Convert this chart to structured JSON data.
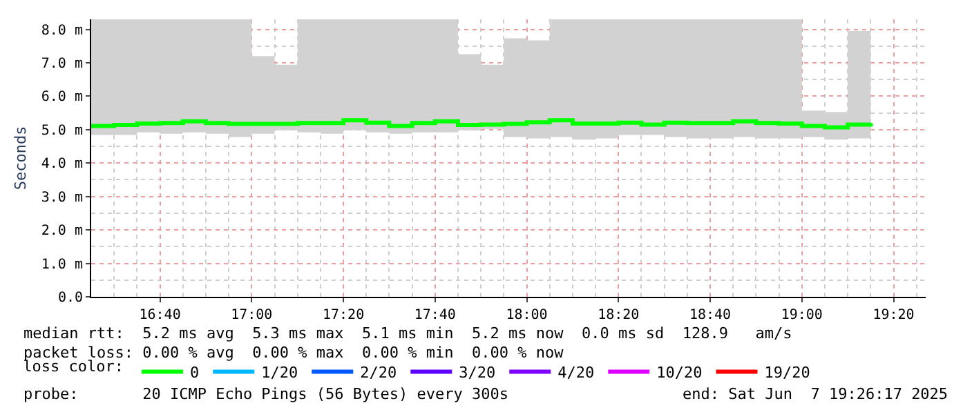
{
  "chart_data": {
    "type": "step",
    "ylabel": "Seconds",
    "legend_title": "loss color:",
    "x": [
      "2025-06-07T16:25",
      "2025-06-07T16:30",
      "2025-06-07T16:35",
      "2025-06-07T16:40",
      "2025-06-07T16:45",
      "2025-06-07T16:50",
      "2025-06-07T16:55",
      "2025-06-07T17:00",
      "2025-06-07T17:05",
      "2025-06-07T17:10",
      "2025-06-07T17:15",
      "2025-06-07T17:20",
      "2025-06-07T17:25",
      "2025-06-07T17:30",
      "2025-06-07T17:35",
      "2025-06-07T17:40",
      "2025-06-07T17:45",
      "2025-06-07T17:50",
      "2025-06-07T17:55",
      "2025-06-07T18:00",
      "2025-06-07T18:05",
      "2025-06-07T18:10",
      "2025-06-07T18:15",
      "2025-06-07T18:20",
      "2025-06-07T18:25",
      "2025-06-07T18:30",
      "2025-06-07T18:35",
      "2025-06-07T18:40",
      "2025-06-07T18:45",
      "2025-06-07T18:50",
      "2025-06-07T18:55",
      "2025-06-07T19:00",
      "2025-06-07T19:05",
      "2025-06-07T19:10",
      "2025-06-07T19:15"
    ],
    "series": [
      {
        "name": "0",
        "color": "#00ff00",
        "values": [
          5.11,
          5.14,
          5.18,
          5.2,
          5.25,
          5.2,
          5.17,
          5.17,
          5.17,
          5.2,
          5.2,
          5.28,
          5.21,
          5.11,
          5.2,
          5.25,
          5.14,
          5.15,
          5.17,
          5.22,
          5.28,
          5.18,
          5.18,
          5.21,
          5.15,
          5.21,
          5.2,
          5.2,
          5.25,
          5.2,
          5.18,
          5.11,
          5.07,
          5.15,
          5.2
        ],
        "lower": [
          4.84,
          4.84,
          4.92,
          4.88,
          4.92,
          4.88,
          4.78,
          4.88,
          4.98,
          4.92,
          4.88,
          4.98,
          4.92,
          4.88,
          4.92,
          4.92,
          4.98,
          5.02,
          4.78,
          4.74,
          4.78,
          4.7,
          4.74,
          4.84,
          4.84,
          4.78,
          4.74,
          4.74,
          4.78,
          4.74,
          4.74,
          4.78,
          4.7,
          4.74,
          4.84
        ],
        "upper": [
          8.3,
          8.3,
          8.3,
          8.3,
          8.3,
          8.3,
          8.3,
          7.2,
          6.94,
          8.3,
          8.3,
          8.3,
          8.3,
          8.3,
          8.3,
          8.3,
          7.26,
          6.94,
          7.73,
          7.67,
          8.3,
          8.3,
          8.3,
          8.3,
          8.3,
          8.3,
          8.3,
          8.3,
          8.3,
          8.3,
          8.3,
          5.57,
          5.53,
          7.95,
          8.3
        ]
      },
      {
        "name": "1/20",
        "color": "#00b8ff",
        "values": [
          null,
          null,
          null,
          null,
          null,
          null,
          null,
          null,
          null,
          null,
          null,
          null,
          null,
          null,
          null,
          null,
          null,
          null,
          null,
          null,
          null,
          null,
          null,
          null,
          null,
          null,
          null,
          null,
          null,
          null,
          null,
          null,
          null,
          null,
          null
        ]
      },
      {
        "name": "2/20",
        "color": "#0059ff",
        "values": [
          null,
          null,
          null,
          null,
          null,
          null,
          null,
          null,
          null,
          null,
          null,
          null,
          null,
          null,
          null,
          null,
          null,
          null,
          null,
          null,
          null,
          null,
          null,
          null,
          null,
          null,
          null,
          null,
          null,
          null,
          null,
          null,
          null,
          null,
          null
        ]
      },
      {
        "name": "3/20",
        "color": "#5e00ff",
        "values": [
          null,
          null,
          null,
          null,
          null,
          null,
          null,
          null,
          null,
          null,
          null,
          null,
          null,
          null,
          null,
          null,
          null,
          null,
          null,
          null,
          null,
          null,
          null,
          null,
          null,
          null,
          null,
          null,
          null,
          null,
          null,
          null,
          null,
          null,
          null
        ]
      },
      {
        "name": "4/20",
        "color": "#7e00ff",
        "values": [
          null,
          null,
          null,
          null,
          null,
          null,
          null,
          null,
          null,
          null,
          null,
          null,
          null,
          null,
          null,
          null,
          null,
          null,
          null,
          null,
          null,
          null,
          null,
          null,
          null,
          null,
          null,
          null,
          null,
          null,
          null,
          null,
          null,
          null,
          null
        ]
      },
      {
        "name": "10/20",
        "color": "#dd00ff",
        "values": [
          null,
          null,
          null,
          null,
          null,
          null,
          null,
          null,
          null,
          null,
          null,
          null,
          null,
          null,
          null,
          null,
          null,
          null,
          null,
          null,
          null,
          null,
          null,
          null,
          null,
          null,
          null,
          null,
          null,
          null,
          null,
          null,
          null,
          null,
          null
        ]
      },
      {
        "name": "19/20",
        "color": "#ff0000",
        "values": [
          null,
          null,
          null,
          null,
          null,
          null,
          null,
          null,
          null,
          null,
          null,
          null,
          null,
          null,
          null,
          null,
          null,
          null,
          null,
          null,
          null,
          null,
          null,
          null,
          null,
          null,
          null,
          null,
          null,
          null,
          null,
          null,
          null,
          null,
          null
        ]
      }
    ],
    "xlim": [
      "2025-06-07T16:25",
      "2025-06-07T19:27"
    ],
    "xticks": [
      {
        "value": "2025-06-07T16:40",
        "label": "16:40"
      },
      {
        "value": "2025-06-07T17:00",
        "label": "17:00"
      },
      {
        "value": "2025-06-07T17:20",
        "label": "17:20"
      },
      {
        "value": "2025-06-07T17:40",
        "label": "17:40"
      },
      {
        "value": "2025-06-07T18:00",
        "label": "18:00"
      },
      {
        "value": "2025-06-07T18:20",
        "label": "18:20"
      },
      {
        "value": "2025-06-07T18:40",
        "label": "18:40"
      },
      {
        "value": "2025-06-07T19:00",
        "label": "19:00"
      },
      {
        "value": "2025-06-07T19:20",
        "label": "19:20"
      }
    ],
    "ylim": [
      0,
      8.3
    ],
    "yticks": [
      {
        "value": 0,
        "label": "0.0"
      },
      {
        "value": 1,
        "label": "1.0 m"
      },
      {
        "value": 2,
        "label": "2.0 m"
      },
      {
        "value": 3,
        "label": "3.0 m"
      },
      {
        "value": 4,
        "label": "4.0 m"
      },
      {
        "value": 5,
        "label": "5.0 m"
      },
      {
        "value": 6,
        "label": "6.0 m"
      },
      {
        "value": 7,
        "label": "7.0 m"
      },
      {
        "value": 8,
        "label": "8.0 m"
      }
    ],
    "grid": true,
    "legend": "bottom",
    "line_style": "solid",
    "marker": "none",
    "annotations": [
      "median rtt:  5.2 ms avg  5.3 ms max  5.1 ms min  5.2 ms now  0.0 ms sd  128.9   am/s",
      "packet loss: 0.00 % avg  0.00 % max  0.00 % min  0.00 % now",
      "probe:       20 ICMP Echo Pings (56 Bytes) every 300s",
      "end: Sat Jun  7 19:26:17 2025"
    ]
  }
}
